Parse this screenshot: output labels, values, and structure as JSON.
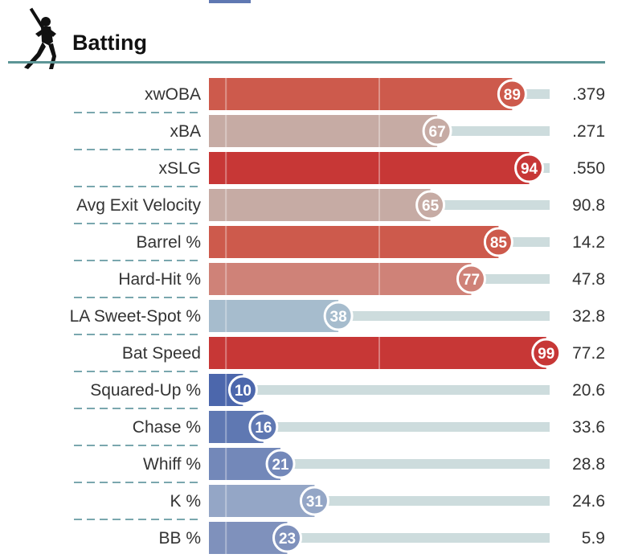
{
  "section": {
    "title": "Batting",
    "icon": "batter-icon"
  },
  "colors": {
    "rule": "#5c9596",
    "dash": "#4e8a93",
    "track": "#cddcdd",
    "label": "#333333",
    "circle_border": "#ffffff"
  },
  "chart_data": {
    "type": "bar",
    "orientation": "horizontal",
    "scale": [
      0,
      100
    ],
    "value_unit": "percentile",
    "categories": [
      "xwOBA",
      "xBA",
      "xSLG",
      "Avg Exit Velocity",
      "Barrel %",
      "Hard-Hit %",
      "LA Sweet-Spot %",
      "Bat Speed",
      "Squared-Up %",
      "Chase %",
      "Whiff %",
      "K %",
      "BB %"
    ],
    "series": [
      {
        "values": [
          89,
          67,
          94,
          65,
          85,
          77,
          38,
          99,
          10,
          16,
          21,
          31,
          23
        ]
      }
    ],
    "stat_values": [
      ".379",
      ".271",
      ".550",
      "90.8",
      "14.2",
      "47.8",
      "32.8",
      "77.2",
      "20.6",
      "33.6",
      "28.8",
      "24.6",
      "5.9"
    ],
    "bar_colors": [
      "#cd5a4c",
      "#c6aba4",
      "#c73736",
      "#c6aba4",
      "#cd5a4c",
      "#cf8278",
      "#a6bccd",
      "#c73736",
      "#4c67ac",
      "#5f78b2",
      "#7388b9",
      "#94a6c6",
      "#7f91bc"
    ]
  }
}
